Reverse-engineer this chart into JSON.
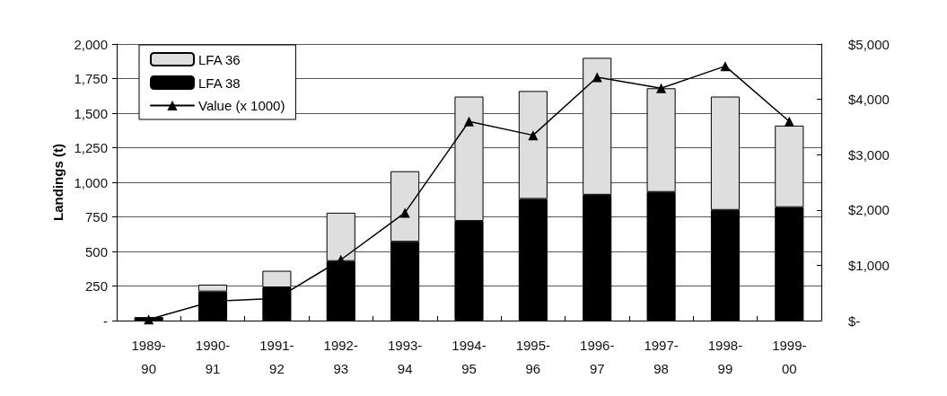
{
  "chart_data": {
    "type": "bar",
    "ylabel": "Landings (t)",
    "categories": [
      "1989-\n90",
      "1990-\n91",
      "1991-\n92",
      "1992-\n93",
      "1993-\n94",
      "1994-\n95",
      "1995-\n96",
      "1996-\n97",
      "1997-\n98",
      "1998-\n99",
      "1999-\n00"
    ],
    "stacked": true,
    "series": [
      {
        "name": "LFA 38",
        "color": "#000000",
        "values": [
          25,
          210,
          240,
          430,
          570,
          720,
          880,
          910,
          930,
          800,
          820
        ]
      },
      {
        "name": "LFA 36",
        "color": "#dedede",
        "values": [
          null,
          50,
          120,
          350,
          510,
          900,
          780,
          990,
          750,
          820,
          590
        ]
      },
      {
        "name": "Value (x 1000)",
        "type": "line",
        "axis": "y2",
        "color": "#000000",
        "values": [
          20,
          350,
          400,
          1100,
          1950,
          3600,
          3350,
          4400,
          4200,
          4600,
          3600
        ]
      }
    ],
    "ylim": [
      0,
      2000
    ],
    "yticks": [
      {
        "value": 0,
        "label": "-"
      },
      250,
      500,
      750,
      {
        "value": 1000,
        "label": "1,000"
      },
      {
        "value": 1250,
        "label": "1,250"
      },
      {
        "value": 1500,
        "label": "1,500"
      },
      {
        "value": 1750,
        "label": "1,750"
      },
      {
        "value": 2000,
        "label": "2,000"
      }
    ],
    "y2lim": [
      0,
      5000
    ],
    "y2ticks": [
      {
        "value": 0,
        "label": "$-"
      },
      {
        "value": 1000,
        "label": "$1,000"
      },
      {
        "value": 2000,
        "label": "$2,000"
      },
      {
        "value": 3000,
        "label": "$3,000"
      },
      {
        "value": 4000,
        "label": "$4,000"
      },
      {
        "value": 5000,
        "label": "$5,000"
      }
    ],
    "grid": "y",
    "legend": "top left",
    "marker": "triangle",
    "line_style": "solid"
  }
}
